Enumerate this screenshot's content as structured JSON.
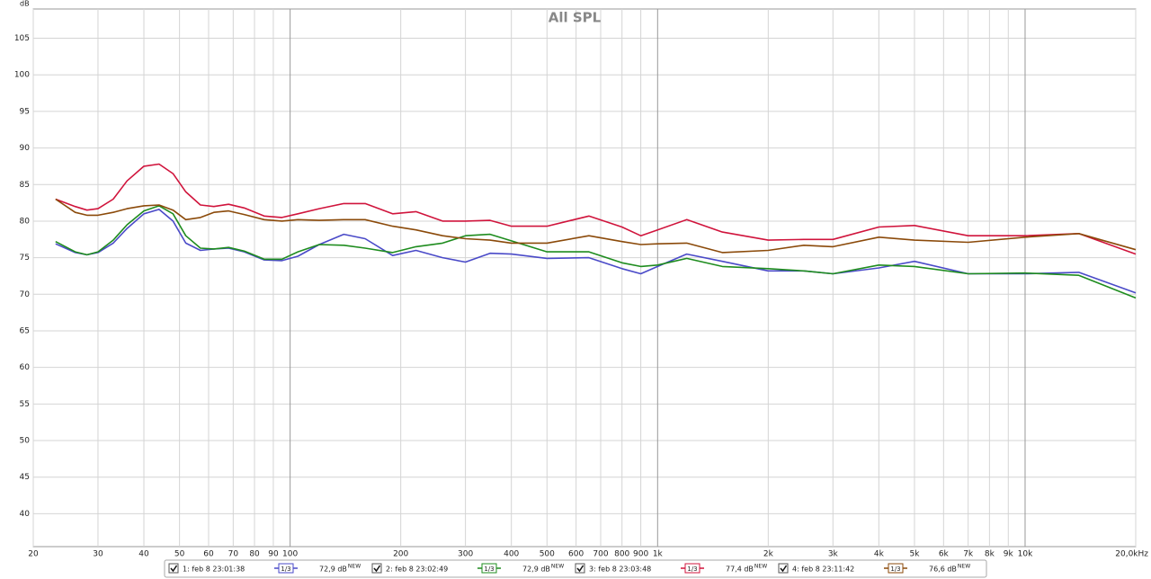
{
  "chart_data": {
    "type": "line",
    "title": "All SPL",
    "y_label": "dB",
    "xscale": "log",
    "grid": true,
    "x": [
      23,
      26,
      28,
      30,
      33,
      36,
      40,
      44,
      48,
      52,
      57,
      62,
      68,
      75,
      85,
      95,
      105,
      120,
      140,
      160,
      190,
      220,
      260,
      300,
      350,
      400,
      500,
      650,
      800,
      900,
      1000,
      1200,
      1500,
      2000,
      2500,
      3000,
      4000,
      5000,
      7000,
      10000,
      14000,
      20000
    ],
    "xlim": [
      20,
      20000
    ],
    "xticks": [
      20,
      30,
      40,
      50,
      60,
      70,
      80,
      90,
      100,
      200,
      300,
      400,
      500,
      600,
      700,
      800,
      900,
      {
        "value": 1000,
        "label": "1k"
      },
      {
        "value": 2000,
        "label": "2k"
      },
      {
        "value": 3000,
        "label": "3k"
      },
      {
        "value": 4000,
        "label": "4k"
      },
      {
        "value": 5000,
        "label": "5k"
      },
      {
        "value": 6000,
        "label": "6k"
      },
      {
        "value": 7000,
        "label": "7k"
      },
      {
        "value": 8000,
        "label": "8k"
      },
      {
        "value": 9000,
        "label": "9k"
      },
      {
        "value": 10000,
        "label": "10k"
      },
      {
        "value": 20000,
        "label": "20,0kHz"
      }
    ],
    "ylim": [
      35.5,
      109
    ],
    "yticks": [
      40,
      45,
      50,
      55,
      60,
      65,
      70,
      75,
      80,
      85,
      90,
      95,
      100,
      105
    ],
    "series": [
      {
        "name": "1: feb 8 23:01:38",
        "color": "#4a4ac8",
        "visible": true,
        "smoothing": "1/3",
        "level": "72,9 dB",
        "level_badge": "NEW",
        "values": [
          76.9,
          75.7,
          75.4,
          75.7,
          77,
          79,
          81,
          81.6,
          80,
          77,
          76,
          76.2,
          76.3,
          75.8,
          74.7,
          74.6,
          75.2,
          76.8,
          78.2,
          77.6,
          75.3,
          76,
          75,
          74.4,
          75.6,
          75.5,
          74.9,
          75,
          73.5,
          72.8,
          73.8,
          75.5,
          74.5,
          73.2,
          73.2,
          72.8,
          73.6,
          74.5,
          72.8,
          72.8,
          73,
          70.2
        ]
      },
      {
        "name": "2: feb 8 23:02:49",
        "color": "#1e8c1e",
        "visible": true,
        "smoothing": "1/3",
        "level": "72,9 dB",
        "level_badge": "NEW",
        "values": [
          77.2,
          75.8,
          75.4,
          75.8,
          77.4,
          79.5,
          81.4,
          82.1,
          81,
          78,
          76.3,
          76.2,
          76.4,
          75.9,
          74.8,
          74.8,
          75.8,
          76.8,
          76.7,
          76.3,
          75.7,
          76.5,
          77,
          78,
          78.2,
          77.3,
          75.8,
          75.8,
          74.3,
          73.8,
          74,
          74.9,
          73.8,
          73.5,
          73.2,
          72.8,
          74,
          73.8,
          72.8,
          72.9,
          72.6,
          69.5
        ]
      },
      {
        "name": "3: feb 8 23:03:48",
        "color": "#d0143c",
        "visible": true,
        "smoothing": "1/3",
        "level": "77,4 dB",
        "level_badge": "NEW",
        "values": [
          83,
          82,
          81.5,
          81.7,
          83,
          85.5,
          87.5,
          87.8,
          86.5,
          84,
          82.2,
          82,
          82.3,
          81.8,
          80.7,
          80.5,
          81,
          81.7,
          82.4,
          82.4,
          81,
          81.3,
          80,
          80,
          80.1,
          79.3,
          79.3,
          80.7,
          79.2,
          78,
          78.8,
          80.2,
          78.5,
          77.4,
          77.5,
          77.5,
          79.2,
          79.4,
          78,
          78,
          78.3,
          75.5
        ]
      },
      {
        "name": "4: feb 8 23:11:42",
        "color": "#8b4a0a",
        "visible": true,
        "smoothing": "1/3",
        "level": "76,6 dB",
        "level_badge": "NEW",
        "values": [
          83,
          81.2,
          80.8,
          80.8,
          81.2,
          81.7,
          82.1,
          82.2,
          81.5,
          80.2,
          80.5,
          81.2,
          81.4,
          80.9,
          80.2,
          80,
          80.2,
          80.1,
          80.2,
          80.2,
          79.3,
          78.8,
          78,
          77.6,
          77.4,
          77,
          77,
          78,
          77.2,
          76.8,
          76.9,
          77,
          75.7,
          76,
          76.7,
          76.5,
          77.8,
          77.4,
          77.1,
          77.8,
          78.3,
          76.1
        ]
      }
    ]
  }
}
